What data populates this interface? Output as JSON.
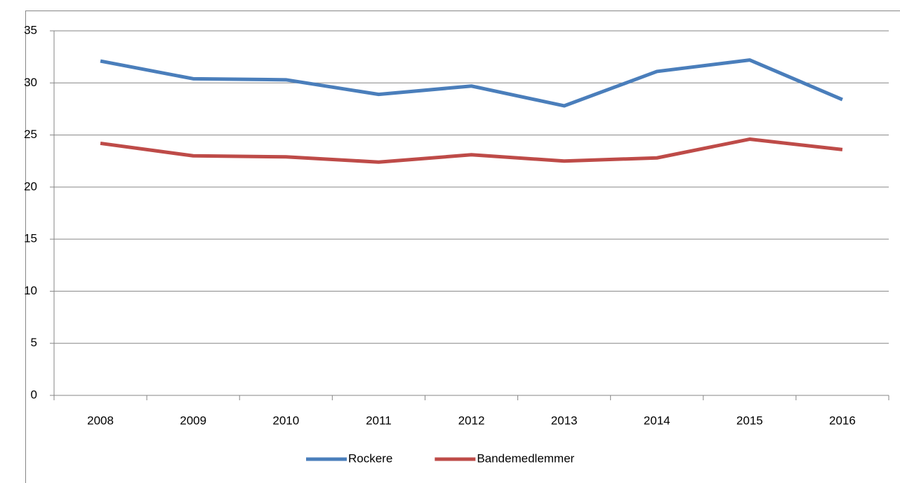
{
  "chart_data": {
    "type": "line",
    "categories": [
      "2008",
      "2009",
      "2010",
      "2011",
      "2012",
      "2013",
      "2014",
      "2015",
      "2016"
    ],
    "series": [
      {
        "name": "Rockere",
        "color": "#4a7ebb",
        "values": [
          32.1,
          30.4,
          30.3,
          28.9,
          29.7,
          27.8,
          31.1,
          32.2,
          28.4
        ]
      },
      {
        "name": "Bandemedlemmer",
        "color": "#be4b48",
        "values": [
          24.2,
          23.0,
          22.9,
          22.4,
          23.1,
          22.5,
          22.8,
          24.6,
          23.6
        ]
      }
    ],
    "ylim": [
      0,
      35
    ],
    "yticks": [
      0,
      5,
      10,
      15,
      20,
      25,
      30,
      35
    ],
    "grid": true,
    "legend": "bottom"
  }
}
